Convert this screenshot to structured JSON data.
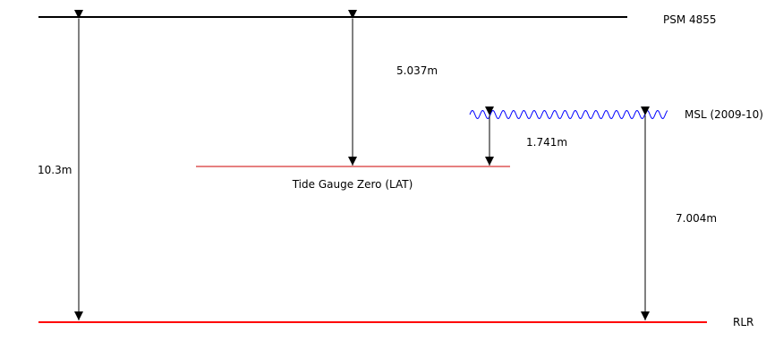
{
  "levels": {
    "psm": {
      "label": "PSM 4855"
    },
    "msl": {
      "label": "MSL (2009-10)"
    },
    "tide_gauge_zero": {
      "label": "Tide Gauge Zero (LAT)"
    },
    "rlr": {
      "label": "RLR"
    }
  },
  "measurements": {
    "psm_to_rlr": "10.3m",
    "psm_to_tide_gauge_zero": "5.037m",
    "msl_to_tide_gauge_zero": "1.741m",
    "msl_to_rlr": "7.004m"
  },
  "colors": {
    "psm_line": "#000000",
    "rlr_line": "#ff0000",
    "tide_gauge_zero_line": "#cc0000",
    "msl_wave": "#0000ff",
    "arrows": "#000000"
  }
}
